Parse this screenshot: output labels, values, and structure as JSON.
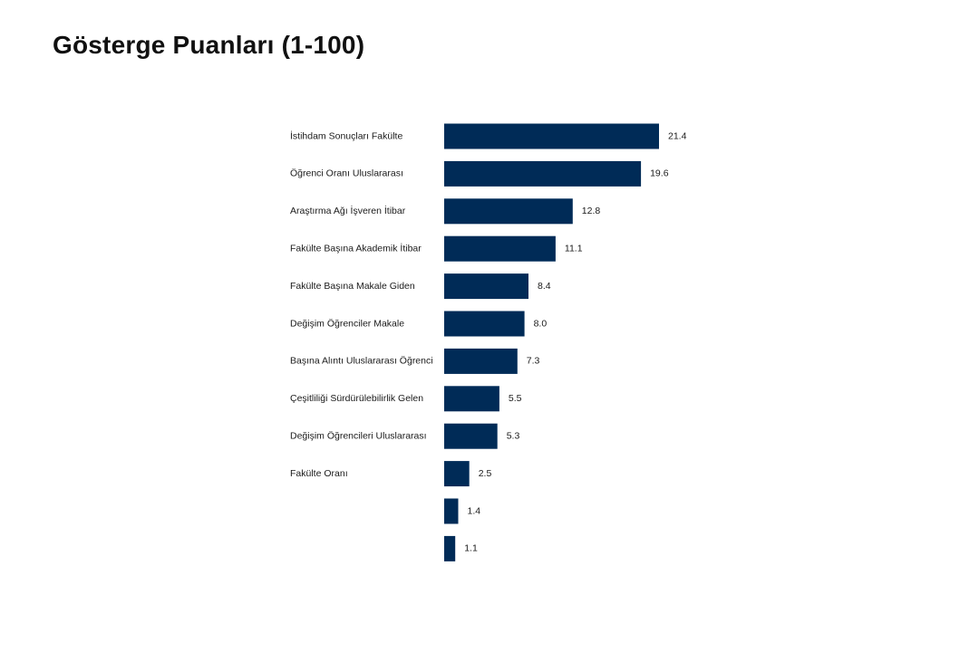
{
  "chart_data": {
    "type": "bar",
    "orientation": "horizontal",
    "title": "Gösterge Puanları (1-100)",
    "categories": [
      "İstihdam Sonuçları Fakülte",
      "Öğrenci Oranı Uluslararası",
      "Araştırma Ağı İşveren İtibar",
      "Fakülte Başına Akademik İtibar",
      "Fakülte Başına Makale Giden",
      "Değişim Öğrenciler Makale",
      "Başına Alıntı Uluslararası Öğrenci",
      "Çeşitliliği Sürdürülebilirlik Gelen",
      "Değişim Öğrencileri Uluslararası",
      "Fakülte Oranı",
      "",
      ""
    ],
    "values": [
      21.4,
      19.6,
      12.8,
      11.1,
      8.4,
      8.0,
      7.3,
      5.5,
      5.3,
      2.5,
      1.4,
      1.1
    ],
    "value_labels": [
      "21.4",
      "19.6",
      "12.8",
      "11.1",
      "8.4",
      "8.0",
      "7.3",
      "5.5",
      "5.3",
      "2.5",
      "1.4",
      "1.1"
    ],
    "bar_color": "#002b57",
    "grid": false,
    "legend": "none"
  }
}
